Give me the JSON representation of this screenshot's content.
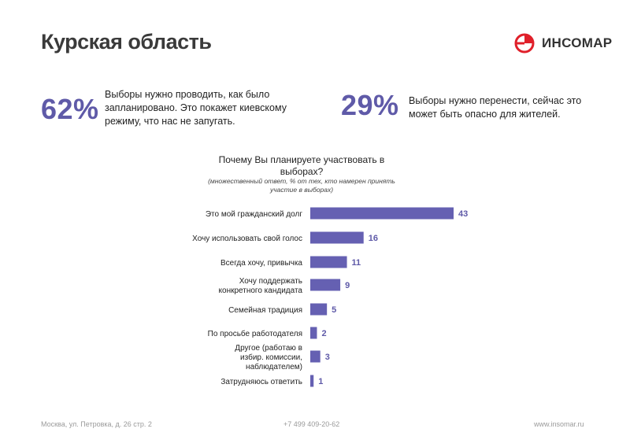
{
  "header": {
    "title": "Курская область"
  },
  "logo": {
    "name": "ИНСОМАР",
    "icon": "insomar-logo-icon"
  },
  "stats": [
    {
      "percent": "62%",
      "text": "Выборы нужно проводить, как было запланировано. Это покажет киевскому режиму, что нас не запугать."
    },
    {
      "percent": "29%",
      "text": "Выборы нужно перенести, сейчас это может быть опасно для жителей."
    }
  ],
  "chart_data": {
    "type": "bar",
    "orientation": "horizontal",
    "title": "Почему Вы планируете участвовать в выборах?",
    "subtitle": "(множественный ответ, % от тех, кто намерен принять участие в выборах)",
    "categories": [
      "Это мой гражданский долг",
      "Хочу использовать свой голос",
      "Всегда хочу, привычка",
      "Хочу поддержать конкретного кандидата",
      "Семейная традиция",
      "По просьбе работодателя",
      "Другое (работаю в избир. комиссии, наблюдателем)",
      "Затрудняюсь ответить"
    ],
    "values": [
      43,
      16,
      11,
      9,
      5,
      2,
      3,
      1
    ],
    "bar_color": "#6560b2",
    "label_color": "#5f5aa8",
    "grid": false,
    "legend": "none"
  },
  "footer": {
    "address": "Москва, ул. Петровка, д. 26 стр. 2",
    "phone": "+7 499 409-20-62",
    "website": "www.insomar.ru"
  }
}
